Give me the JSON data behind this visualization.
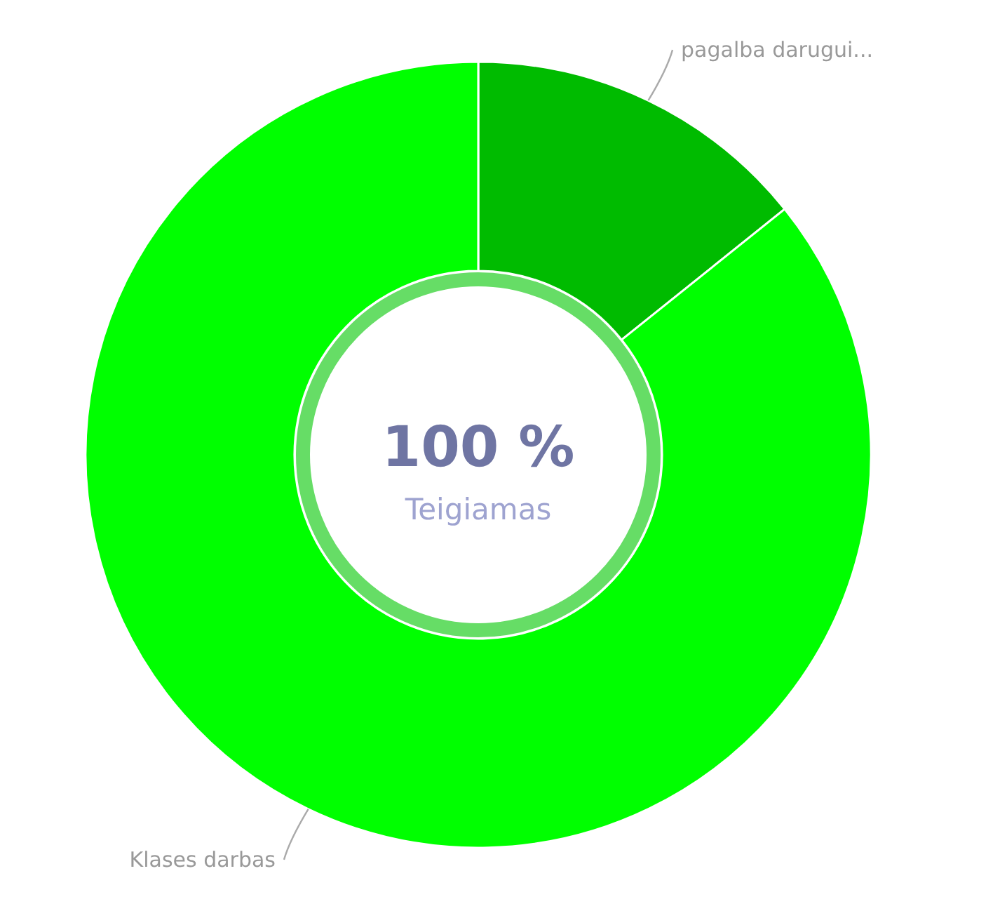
{
  "chart_data": {
    "type": "donut",
    "categories": [
      "pagalba darugui...",
      "Klases darbas"
    ],
    "values": [
      14.25,
      85.75
    ],
    "colors": [
      "#00bb00",
      "#00ff00"
    ],
    "annotations": [
      "100 %",
      "Teigiamas"
    ]
  }
}
